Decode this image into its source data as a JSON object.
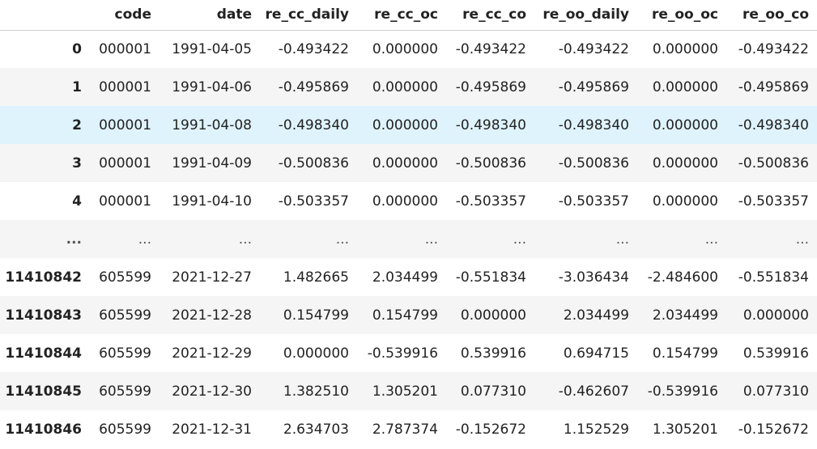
{
  "columns": [
    "code",
    "date",
    "re_cc_daily",
    "re_cc_oc",
    "re_cc_co",
    "re_oo_daily",
    "re_oo_oc",
    "re_oo_co"
  ],
  "rows": [
    {
      "index": "0",
      "cells": [
        "000001",
        "1991-04-05",
        "-0.493422",
        "0.000000",
        "-0.493422",
        "-0.493422",
        "0.000000",
        "-0.493422"
      ]
    },
    {
      "index": "1",
      "cells": [
        "000001",
        "1991-04-06",
        "-0.495869",
        "0.000000",
        "-0.495869",
        "-0.495869",
        "0.000000",
        "-0.495869"
      ]
    },
    {
      "index": "2",
      "cells": [
        "000001",
        "1991-04-08",
        "-0.498340",
        "0.000000",
        "-0.498340",
        "-0.498340",
        "0.000000",
        "-0.498340"
      ]
    },
    {
      "index": "3",
      "cells": [
        "000001",
        "1991-04-09",
        "-0.500836",
        "0.000000",
        "-0.500836",
        "-0.500836",
        "0.000000",
        "-0.500836"
      ]
    },
    {
      "index": "4",
      "cells": [
        "000001",
        "1991-04-10",
        "-0.503357",
        "0.000000",
        "-0.503357",
        "-0.503357",
        "0.000000",
        "-0.503357"
      ]
    },
    {
      "index": "...",
      "cells": [
        "...",
        "...",
        "...",
        "...",
        "...",
        "...",
        "...",
        "..."
      ]
    },
    {
      "index": "11410842",
      "cells": [
        "605599",
        "2021-12-27",
        "1.482665",
        "2.034499",
        "-0.551834",
        "-3.036434",
        "-2.484600",
        "-0.551834"
      ]
    },
    {
      "index": "11410843",
      "cells": [
        "605599",
        "2021-12-28",
        "0.154799",
        "0.154799",
        "0.000000",
        "2.034499",
        "2.034499",
        "0.000000"
      ]
    },
    {
      "index": "11410844",
      "cells": [
        "605599",
        "2021-12-29",
        "0.000000",
        "-0.539916",
        "0.539916",
        "0.694715",
        "0.154799",
        "0.539916"
      ]
    },
    {
      "index": "11410845",
      "cells": [
        "605599",
        "2021-12-30",
        "1.382510",
        "1.305201",
        "0.077310",
        "-0.462607",
        "-0.539916",
        "0.077310"
      ]
    },
    {
      "index": "11410846",
      "cells": [
        "605599",
        "2021-12-31",
        "2.634703",
        "2.787374",
        "-0.152672",
        "1.152529",
        "1.305201",
        "-0.152672"
      ]
    }
  ],
  "highlighted_row": "2",
  "colors": {
    "hover_row": "#dff3fc",
    "striped_row": "#f5f5f5",
    "header_border": "#cfcfcf"
  }
}
